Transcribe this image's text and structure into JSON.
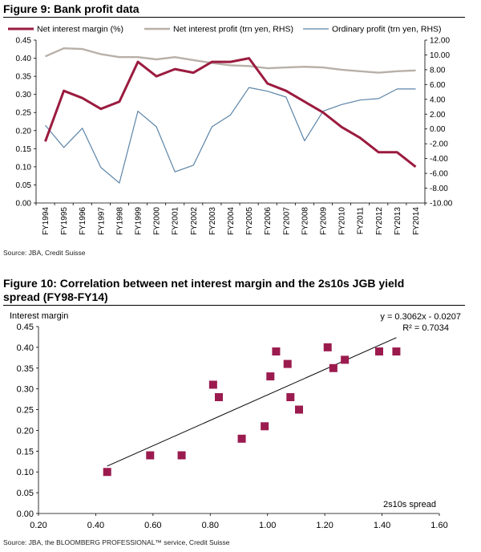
{
  "figure1": {
    "title": "Figure 9: Bank profit data",
    "source": "Source: JBA, Credit Suisse"
  },
  "figure2": {
    "title_line1": "Figure 10: Correlation between net interest margin and the 2s10s JGB yield",
    "title_line2": "spread (FY98-FY14)",
    "source": "Source: JBA, the BLOOMBERG PROFESSIONAL™ service, Credit Suisse"
  },
  "colors": {
    "nim": "#9b1b3f",
    "net": "#b8b0a8",
    "ord": "#5b84a8",
    "scatter": "#9b1b4f",
    "trend": "#000000"
  },
  "chart_data": [
    {
      "type": "line",
      "title": "Figure 9: Bank profit data",
      "categories": [
        "FY1994",
        "FY1995",
        "FY1996",
        "FY1997",
        "FY1998",
        "FY1999",
        "FY2000",
        "FY2001",
        "FY2002",
        "FY2003",
        "FY2004",
        "FY2005",
        "FY2006",
        "FY2007",
        "FY2008",
        "FY2009",
        "FY2010",
        "FY2011",
        "FY2012",
        "FY2013",
        "FY2014"
      ],
      "y_left": {
        "ylim": [
          0,
          0.45
        ],
        "ticks": [
          "0.00",
          "0.05",
          "0.10",
          "0.15",
          "0.20",
          "0.25",
          "0.30",
          "0.35",
          "0.40",
          "0.45"
        ]
      },
      "y_right": {
        "ylim": [
          -10,
          12
        ],
        "ticks": [
          "-10.00",
          "-8.00",
          "-6.00",
          "-4.00",
          "-2.00",
          "0.00",
          "2.00",
          "4.00",
          "6.00",
          "8.00",
          "10.00",
          "12.00"
        ]
      },
      "series": [
        {
          "name": "Net interest margin (%)",
          "axis": "left",
          "color": "#9b1b3f",
          "values": [
            0.17,
            0.31,
            0.29,
            0.26,
            0.28,
            0.39,
            0.35,
            0.37,
            0.36,
            0.39,
            0.39,
            0.4,
            0.33,
            0.31,
            0.28,
            0.25,
            0.21,
            0.18,
            0.14,
            0.14,
            0.1
          ]
        },
        {
          "name": "Net interest profit (trn yen, RHS)",
          "axis": "right",
          "color": "#b8b0a8",
          "values": [
            9.8,
            10.9,
            10.8,
            10.1,
            9.7,
            9.7,
            9.4,
            9.7,
            9.3,
            8.9,
            8.6,
            8.5,
            8.2,
            8.3,
            8.4,
            8.3,
            8.0,
            7.8,
            7.6,
            7.8,
            7.9
          ]
        },
        {
          "name": "Ordinary profit (trn yen, RHS)",
          "axis": "right",
          "color": "#5b84a8",
          "values": [
            0.5,
            -2.5,
            0.1,
            -5.2,
            -7.3,
            2.4,
            0.3,
            -5.8,
            -4.9,
            0.3,
            1.9,
            5.6,
            5.1,
            4.3,
            -1.6,
            2.4,
            3.3,
            3.9,
            4.1,
            5.4,
            5.4
          ]
        }
      ]
    },
    {
      "type": "scatter",
      "title": "Figure 10: Correlation between net interest margin and the 2s10s JGB yield spread (FY98-FY14)",
      "xlabel": "2s10s spread",
      "ylabel": "Interest margin",
      "xlim": [
        0.2,
        1.6
      ],
      "ylim": [
        0,
        0.45
      ],
      "x_ticks": [
        "0.20",
        "0.40",
        "0.60",
        "0.80",
        "1.00",
        "1.20",
        "1.40",
        "1.60"
      ],
      "y_ticks": [
        "0.00",
        "0.05",
        "0.10",
        "0.15",
        "0.20",
        "0.25",
        "0.30",
        "0.35",
        "0.40",
        "0.45"
      ],
      "points": [
        {
          "x": 0.44,
          "y": 0.1
        },
        {
          "x": 0.59,
          "y": 0.14
        },
        {
          "x": 0.7,
          "y": 0.14
        },
        {
          "x": 0.81,
          "y": 0.31
        },
        {
          "x": 0.83,
          "y": 0.28
        },
        {
          "x": 0.91,
          "y": 0.18
        },
        {
          "x": 0.99,
          "y": 0.21
        },
        {
          "x": 1.01,
          "y": 0.33
        },
        {
          "x": 1.03,
          "y": 0.39
        },
        {
          "x": 1.07,
          "y": 0.36
        },
        {
          "x": 1.08,
          "y": 0.28
        },
        {
          "x": 1.11,
          "y": 0.25
        },
        {
          "x": 1.21,
          "y": 0.4
        },
        {
          "x": 1.23,
          "y": 0.35
        },
        {
          "x": 1.27,
          "y": 0.37
        },
        {
          "x": 1.39,
          "y": 0.39
        },
        {
          "x": 1.45,
          "y": 0.39
        }
      ],
      "trendline": {
        "slope": 0.3062,
        "intercept": -0.0207,
        "x_range": [
          0.44,
          1.45
        ]
      },
      "annotations": [
        "y = 0.3062x - 0.0207",
        "R² = 0.7034"
      ]
    }
  ]
}
